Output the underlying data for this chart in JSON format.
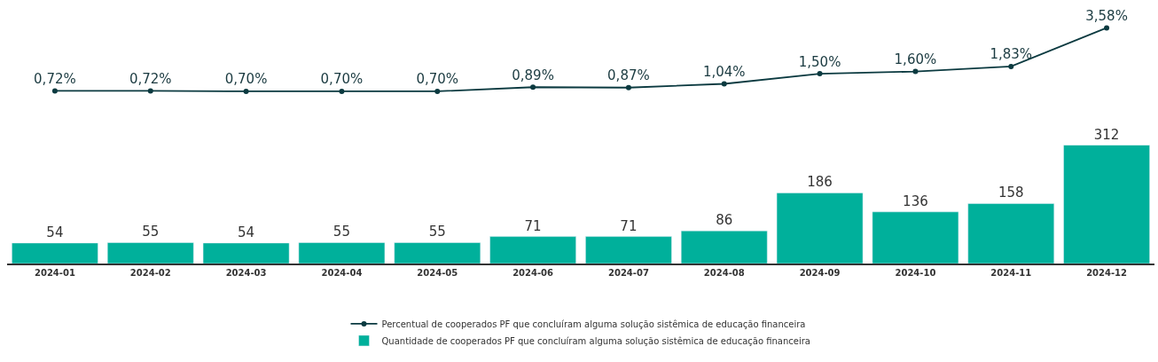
{
  "chart_data": [
    {
      "type": "line",
      "categories": [
        "2024-01",
        "2024-02",
        "2024-03",
        "2024-04",
        "2024-05",
        "2024-06",
        "2024-07",
        "2024-08",
        "2024-09",
        "2024-10",
        "2024-11",
        "2024-12"
      ],
      "tick_labels": false,
      "marker": "circle",
      "legend": "bottom",
      "series": [
        {
          "name": "Percentual de cooperados PF que concluíram alguma solução sistêmica de educação financeira",
          "color": "#0b3a40",
          "values": [
            0.72,
            0.72,
            0.7,
            0.7,
            0.7,
            0.89,
            0.87,
            1.04,
            1.5,
            1.6,
            1.83,
            3.58
          ],
          "value_labels": [
            "0,72%",
            "0,72%",
            "0,70%",
            "0,70%",
            "0,70%",
            "0,89%",
            "0,87%",
            "1,04%",
            "1,50%",
            "1,60%",
            "1,83%",
            "3,58%"
          ]
        }
      ]
    },
    {
      "type": "bar",
      "categories": [
        "2024-01",
        "2024-02",
        "2024-03",
        "2024-04",
        "2024-05",
        "2024-06",
        "2024-07",
        "2024-08",
        "2024-09",
        "2024-10",
        "2024-11",
        "2024-12"
      ],
      "legend": "bottom",
      "series": [
        {
          "name": "Quantidade de cooperados PF que concluíram alguma solução sistêmica de educação financeira",
          "color": "#00b09b",
          "values": [
            54,
            55,
            54,
            55,
            55,
            71,
            71,
            86,
            186,
            136,
            158,
            312
          ],
          "value_labels": [
            "54",
            "55",
            "54",
            "55",
            "55",
            "71",
            "71",
            "86",
            "186",
            "136",
            "158",
            "312"
          ]
        }
      ]
    }
  ]
}
